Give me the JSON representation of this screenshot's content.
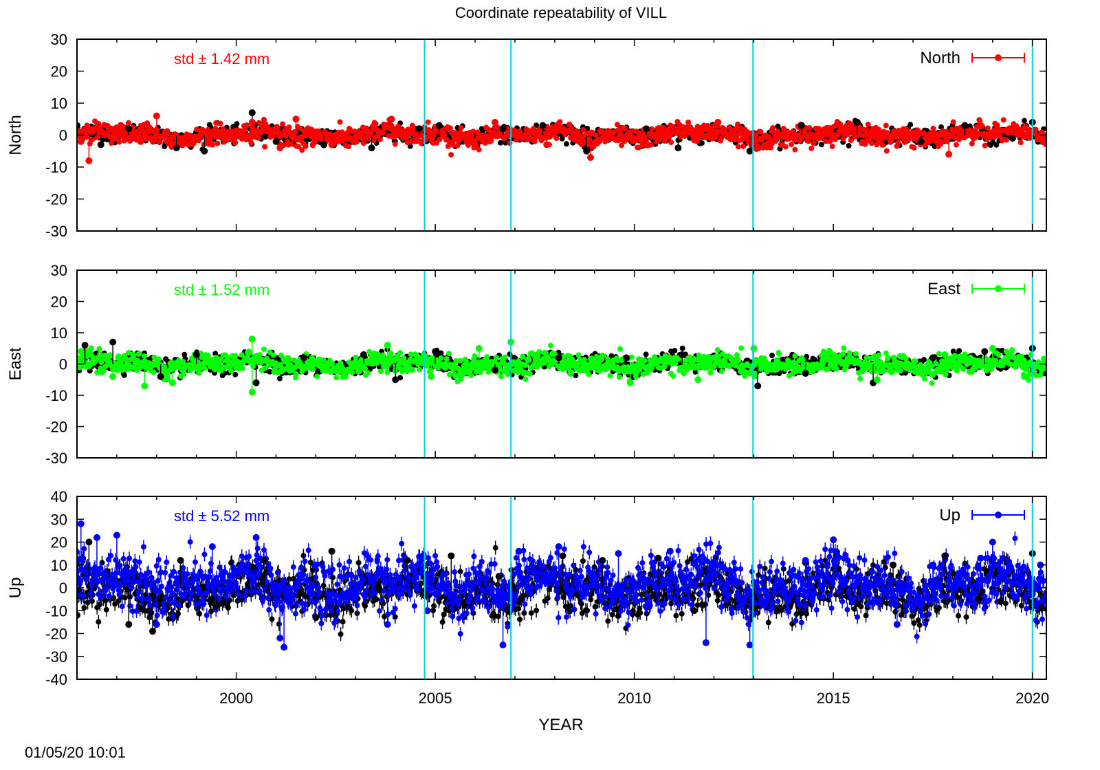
{
  "figure": {
    "title": "Coordinate repeatability of VILL",
    "xlabel": "YEAR",
    "timestamp": "01/05/20 10:01"
  },
  "chart_data": [
    {
      "type": "scatter",
      "title": "Coordinate repeatability of VILL",
      "ylabel": "North",
      "xlim": [
        1996.0,
        2020.35
      ],
      "ylim": [
        -30,
        30
      ],
      "yticks": [
        -30,
        -20,
        -10,
        0,
        10,
        20,
        30
      ],
      "grid": false,
      "legend": {
        "label": "North",
        "position": "top-right"
      },
      "annotation": "std ± 1.42 mm",
      "std_mm": 1.42,
      "color": "#ff0000",
      "error_bars": true,
      "event_lines": [
        2004.73,
        2006.9,
        2012.98,
        2020.0
      ],
      "series": [
        {
          "name": "North",
          "color": "#ff0000",
          "x": [
            1996.1,
            1996.3,
            1997.1,
            1997.6,
            1998.0,
            2000.4,
            2001.1,
            2001.5,
            2002.4,
            2003.9,
            2005.9,
            2006.5,
            2007.8,
            2008.9,
            2010.6,
            2012.1,
            2013.7,
            2015.4,
            2016.8,
            2017.9,
            2019.1
          ],
          "y": [
            -2,
            -8,
            3,
            -2,
            6,
            4,
            -4,
            5,
            -3,
            5,
            -2,
            4,
            -3,
            -7,
            2,
            4,
            -3,
            3,
            -2,
            -6,
            3
          ]
        },
        {
          "name": "",
          "color": "#000000",
          "x": [
            1996.0,
            1996.6,
            1997.3,
            1998.5,
            1999.2,
            2000.4,
            2001.0,
            2002.2,
            2003.4,
            2004.6,
            2005.1,
            2006.7,
            2007.7,
            2008.8,
            2010.3,
            2011.1,
            2012.9,
            2014.2,
            2015.6,
            2017.2,
            2018.3,
            2019.5,
            2020.0
          ],
          "y": [
            3,
            -3,
            2,
            -4,
            -5,
            7,
            -2,
            -3,
            -4,
            2,
            3,
            2,
            3,
            -5,
            2,
            -4,
            -5,
            3,
            4,
            -2,
            3,
            -1,
            4
          ]
        }
      ]
    },
    {
      "type": "scatter",
      "ylabel": "East",
      "xlim": [
        1996.0,
        2020.35
      ],
      "ylim": [
        -30,
        30
      ],
      "yticks": [
        -30,
        -20,
        -10,
        0,
        10,
        20,
        30
      ],
      "grid": false,
      "legend": {
        "label": "East",
        "position": "top-right"
      },
      "annotation": "std ± 1.52 mm",
      "std_mm": 1.52,
      "color": "#00ff00",
      "error_bars": true,
      "event_lines": [
        2004.73,
        2006.9,
        2012.98,
        2020.0
      ],
      "series": [
        {
          "name": "East",
          "color": "#00ff00",
          "x": [
            1996.1,
            1996.9,
            1997.7,
            1998.4,
            2000.4,
            2000.4,
            2003.8,
            2004.9,
            2006.1,
            2006.9,
            2008.4,
            2009.9,
            2011.6,
            2013.0,
            2014.8,
            2016.1,
            2017.8,
            2019.0,
            2019.8
          ],
          "y": [
            4,
            -4,
            -7,
            -6,
            8,
            -9,
            6,
            -4,
            5,
            7,
            -3,
            -6,
            -5,
            5,
            3,
            -5,
            3,
            5,
            -4
          ]
        },
        {
          "name": "",
          "color": "#000000",
          "x": [
            1996.2,
            1996.9,
            1998.1,
            1999.0,
            2000.5,
            2001.7,
            2003.2,
            2004.0,
            2005.0,
            2006.5,
            2008.1,
            2009.8,
            2011.2,
            2013.1,
            2014.3,
            2016.0,
            2017.5,
            2018.8,
            2020.0
          ],
          "y": [
            6,
            7,
            -4,
            3,
            -6,
            2,
            3,
            -5,
            4,
            -2,
            2,
            2,
            3,
            -7,
            -3,
            -6,
            2,
            4,
            5
          ]
        }
      ]
    },
    {
      "type": "scatter",
      "ylabel": "Up",
      "xlabel": "YEAR",
      "xlim": [
        1996.0,
        2020.35
      ],
      "ylim": [
        -40,
        40
      ],
      "yticks": [
        -40,
        -30,
        -20,
        -10,
        0,
        10,
        20,
        30,
        40
      ],
      "xticks": [
        2000,
        2005,
        2010,
        2015,
        2020
      ],
      "grid": false,
      "legend": {
        "label": "Up",
        "position": "top-right"
      },
      "annotation": "std ± 5.52 mm",
      "std_mm": 5.52,
      "color": "#0000ff",
      "error_bars": true,
      "event_lines": [
        2004.73,
        2006.9,
        2012.98,
        2020.0
      ],
      "series": [
        {
          "name": "Up",
          "color": "#0000ff",
          "x": [
            1996.1,
            1996.5,
            1997.0,
            1998.0,
            1999.4,
            2000.5,
            2001.1,
            2001.2,
            2002.0,
            2003.8,
            2004.8,
            2006.7,
            2007.1,
            2008.1,
            2009.6,
            2010.9,
            2011.8,
            2012.9,
            2014.3,
            2015.0,
            2016.6,
            2017.5,
            2018.7,
            2019.0,
            2020.2
          ],
          "y": [
            28,
            22,
            23,
            -16,
            18,
            22,
            -22,
            -26,
            10,
            -16,
            -10,
            -25,
            16,
            18,
            15,
            16,
            -24,
            -25,
            12,
            21,
            -16,
            10,
            13,
            20,
            10
          ]
        },
        {
          "name": "",
          "color": "#000000",
          "x": [
            1996.0,
            1996.3,
            1997.3,
            1997.9,
            1998.6,
            1999.5,
            2000.7,
            2002.0,
            2002.4,
            2003.5,
            2004.3,
            2005.4,
            2006.6,
            2008.2,
            2009.2,
            2010.6,
            2011.5,
            2013.0,
            2014.3,
            2015.6,
            2016.5,
            2017.8,
            2019.2,
            2020.0
          ],
          "y": [
            -12,
            20,
            -16,
            -19,
            12,
            -8,
            12,
            -13,
            16,
            -5,
            12,
            14,
            5,
            14,
            12,
            13,
            -10,
            -9,
            11,
            -7,
            10,
            14,
            -6,
            15
          ]
        }
      ]
    }
  ]
}
